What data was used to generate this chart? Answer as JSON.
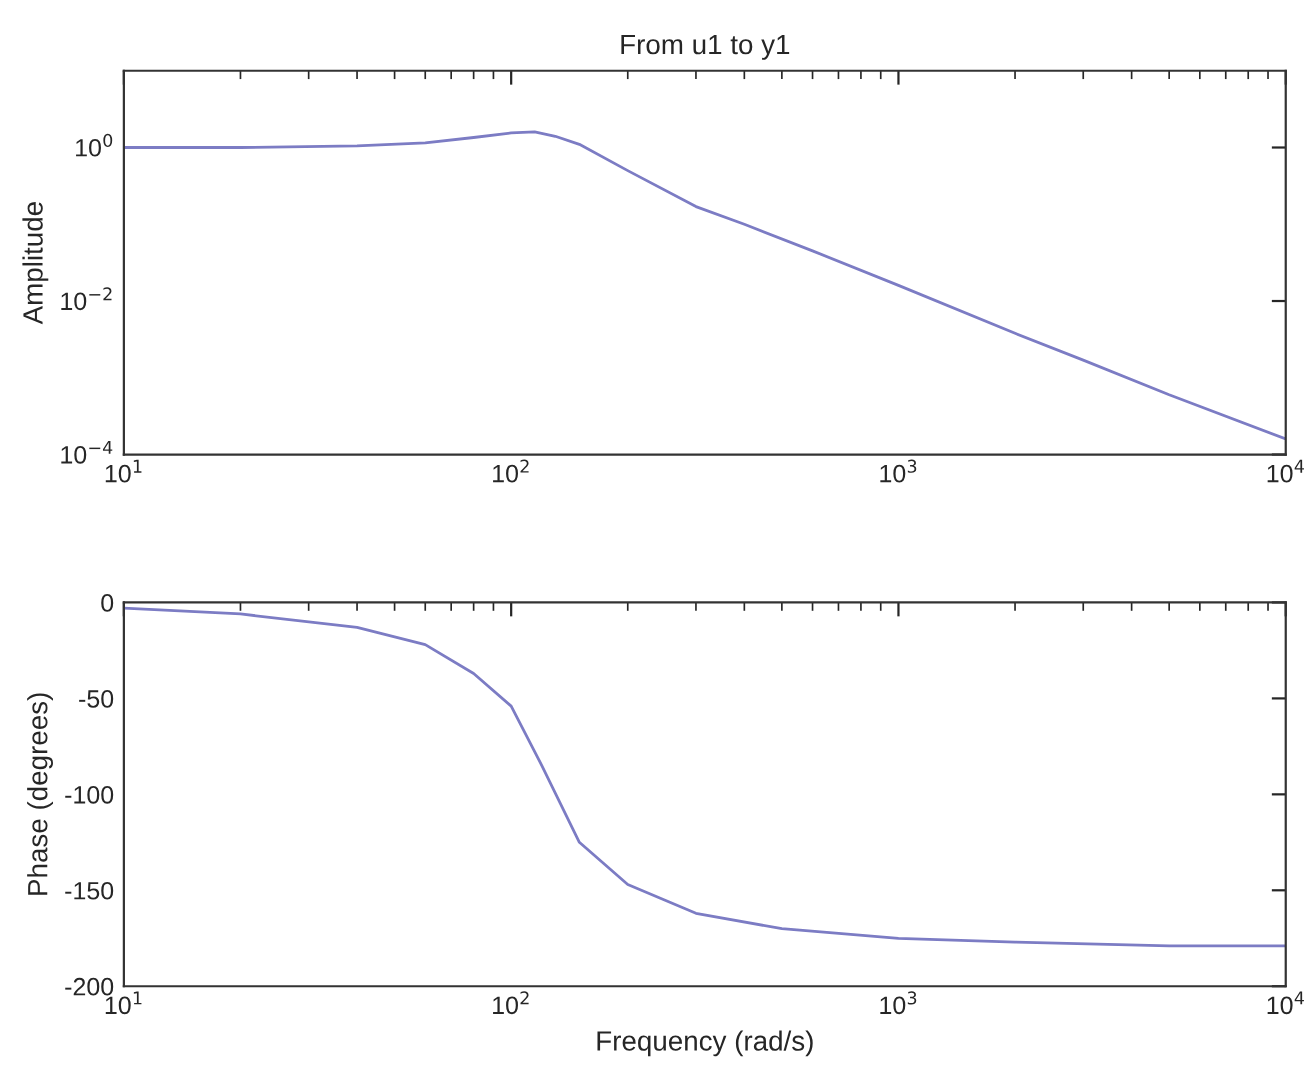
{
  "chart_data": [
    {
      "type": "line",
      "title": "From u1 to y1",
      "ylabel": "Amplitude",
      "log": "xy",
      "x": [
        10,
        20,
        40,
        60,
        80,
        100,
        115,
        130,
        150,
        200,
        300,
        400,
        600,
        1000,
        2000,
        3000,
        5000,
        10000
      ],
      "series": [
        {
          "color": "#7c7cc4",
          "values": [
            1.0,
            1.0,
            1.05,
            1.15,
            1.35,
            1.55,
            1.6,
            1.4,
            1.1,
            0.5,
            0.17,
            0.1,
            0.045,
            0.016,
            0.0038,
            0.0017,
            0.0006,
            0.00016
          ]
        }
      ],
      "xlim": [
        10,
        10000
      ],
      "ylim": [
        0.0001,
        10
      ],
      "xticks": [
        {
          "value": 10,
          "label": "10$^{1}$"
        },
        {
          "value": 100,
          "label": "10$^{2}$"
        },
        {
          "value": 1000,
          "label": "10$^{3}$"
        },
        {
          "value": 10000,
          "label": "10$^{4}$"
        }
      ],
      "yticks": [
        {
          "value": 0.0001,
          "label": "10$^{−4}$"
        },
        {
          "value": 0.01,
          "label": "10$^{−2}$"
        },
        {
          "value": 1,
          "label": "10$^{0}$"
        }
      ]
    },
    {
      "type": "line",
      "xlabel": "Frequency (rad/s)",
      "ylabel": "Phase (degrees)",
      "log": "x",
      "x": [
        10,
        20,
        40,
        60,
        80,
        100,
        120,
        150,
        200,
        300,
        500,
        1000,
        2000,
        5000,
        10000
      ],
      "series": [
        {
          "color": "#7c7cc4",
          "values": [
            -3,
            -6,
            -13,
            -22,
            -37,
            -54,
            -85,
            -125,
            -147,
            -162,
            -170,
            -175,
            -177,
            -179,
            -179
          ]
        }
      ],
      "xlim": [
        10,
        10000
      ],
      "ylim": [
        -200,
        0
      ],
      "xticks": [
        {
          "value": 10,
          "label": "10$^{1}$"
        },
        {
          "value": 100,
          "label": "10$^{2}$"
        },
        {
          "value": 1000,
          "label": "10$^{3}$"
        },
        {
          "value": 10000,
          "label": "10$^{4}$"
        }
      ],
      "yticks": [
        -200,
        -150,
        -100,
        -50,
        0
      ]
    }
  ]
}
